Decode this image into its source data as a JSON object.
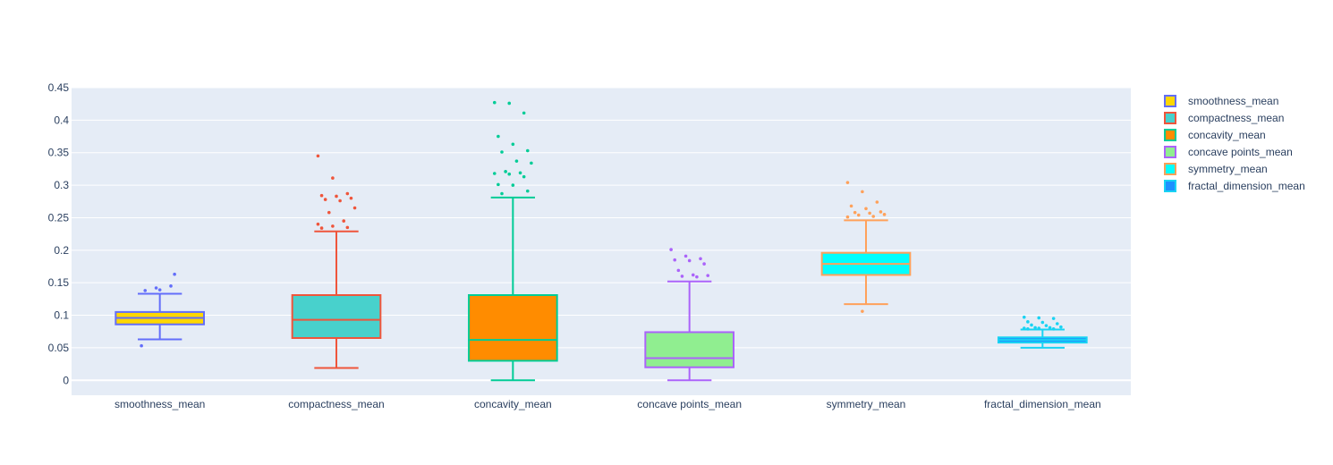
{
  "chart_data": {
    "type": "box",
    "title": "",
    "xlabel": "",
    "ylabel": "",
    "ylim": [
      -0.023,
      0.45
    ],
    "yticks": [
      0,
      0.05,
      0.1,
      0.15,
      0.2,
      0.25,
      0.3,
      0.35,
      0.4,
      0.45
    ],
    "ytick_labels": [
      "0",
      "0.05",
      "0.1",
      "0.15",
      "0.2",
      "0.25",
      "0.3",
      "0.35",
      "0.4",
      "0.45"
    ],
    "grid": true,
    "legend_position": "top-right",
    "categories": [
      "smoothness_mean",
      "compactness_mean",
      "concavity_mean",
      "concave points_mean",
      "symmetry_mean",
      "fractal_dimension_mean"
    ],
    "series": [
      {
        "name": "smoothness_mean",
        "line_color": "#636efa",
        "fill_color": "#ffd700",
        "min": 0.063,
        "q1": 0.086,
        "median": 0.096,
        "q3": 0.105,
        "max": 0.133,
        "outliers": [
          0.053,
          0.142,
          0.145,
          0.138,
          0.139,
          0.163
        ]
      },
      {
        "name": "compactness_mean",
        "line_color": "#ef553b",
        "fill_color": "#48d1cc",
        "min": 0.019,
        "q1": 0.065,
        "median": 0.093,
        "q3": 0.131,
        "max": 0.229,
        "outliers": [
          0.345,
          0.311,
          0.287,
          0.284,
          0.283,
          0.28,
          0.278,
          0.276,
          0.265,
          0.258,
          0.245,
          0.24,
          0.237,
          0.235,
          0.234
        ]
      },
      {
        "name": "concavity_mean",
        "line_color": "#00cc96",
        "fill_color": "#ff8c00",
        "min": 0,
        "q1": 0.03,
        "median": 0.062,
        "q3": 0.131,
        "max": 0.281,
        "outliers": [
          0.427,
          0.426,
          0.411,
          0.375,
          0.363,
          0.353,
          0.351,
          0.337,
          0.334,
          0.321,
          0.319,
          0.318,
          0.317,
          0.313,
          0.301,
          0.3,
          0.291,
          0.287
        ]
      },
      {
        "name": "concave points_mean",
        "line_color": "#ab63fa",
        "fill_color": "#90ee90",
        "min": 0,
        "q1": 0.02,
        "median": 0.034,
        "q3": 0.074,
        "max": 0.152,
        "outliers": [
          0.201,
          0.191,
          0.187,
          0.185,
          0.184,
          0.179,
          0.169,
          0.162,
          0.161,
          0.16,
          0.159
        ]
      },
      {
        "name": "symmetry_mean",
        "line_color": "#ffa15a",
        "fill_color": "#00ffff",
        "min": 0.117,
        "q1": 0.162,
        "median": 0.179,
        "q3": 0.196,
        "max": 0.246,
        "outliers": [
          0.304,
          0.29,
          0.274,
          0.268,
          0.264,
          0.259,
          0.258,
          0.257,
          0.255,
          0.254,
          0.252,
          0.251,
          0.106
        ]
      },
      {
        "name": "fractal_dimension_mean",
        "line_color": "#19d3f3",
        "fill_color": "#1e90ff",
        "min": 0.05,
        "q1": 0.058,
        "median": 0.062,
        "q3": 0.066,
        "max": 0.078,
        "outliers": [
          0.097,
          0.096,
          0.095,
          0.09,
          0.089,
          0.087,
          0.085,
          0.084,
          0.082,
          0.081,
          0.081,
          0.08,
          0.08,
          0.079,
          0.079
        ]
      }
    ]
  }
}
